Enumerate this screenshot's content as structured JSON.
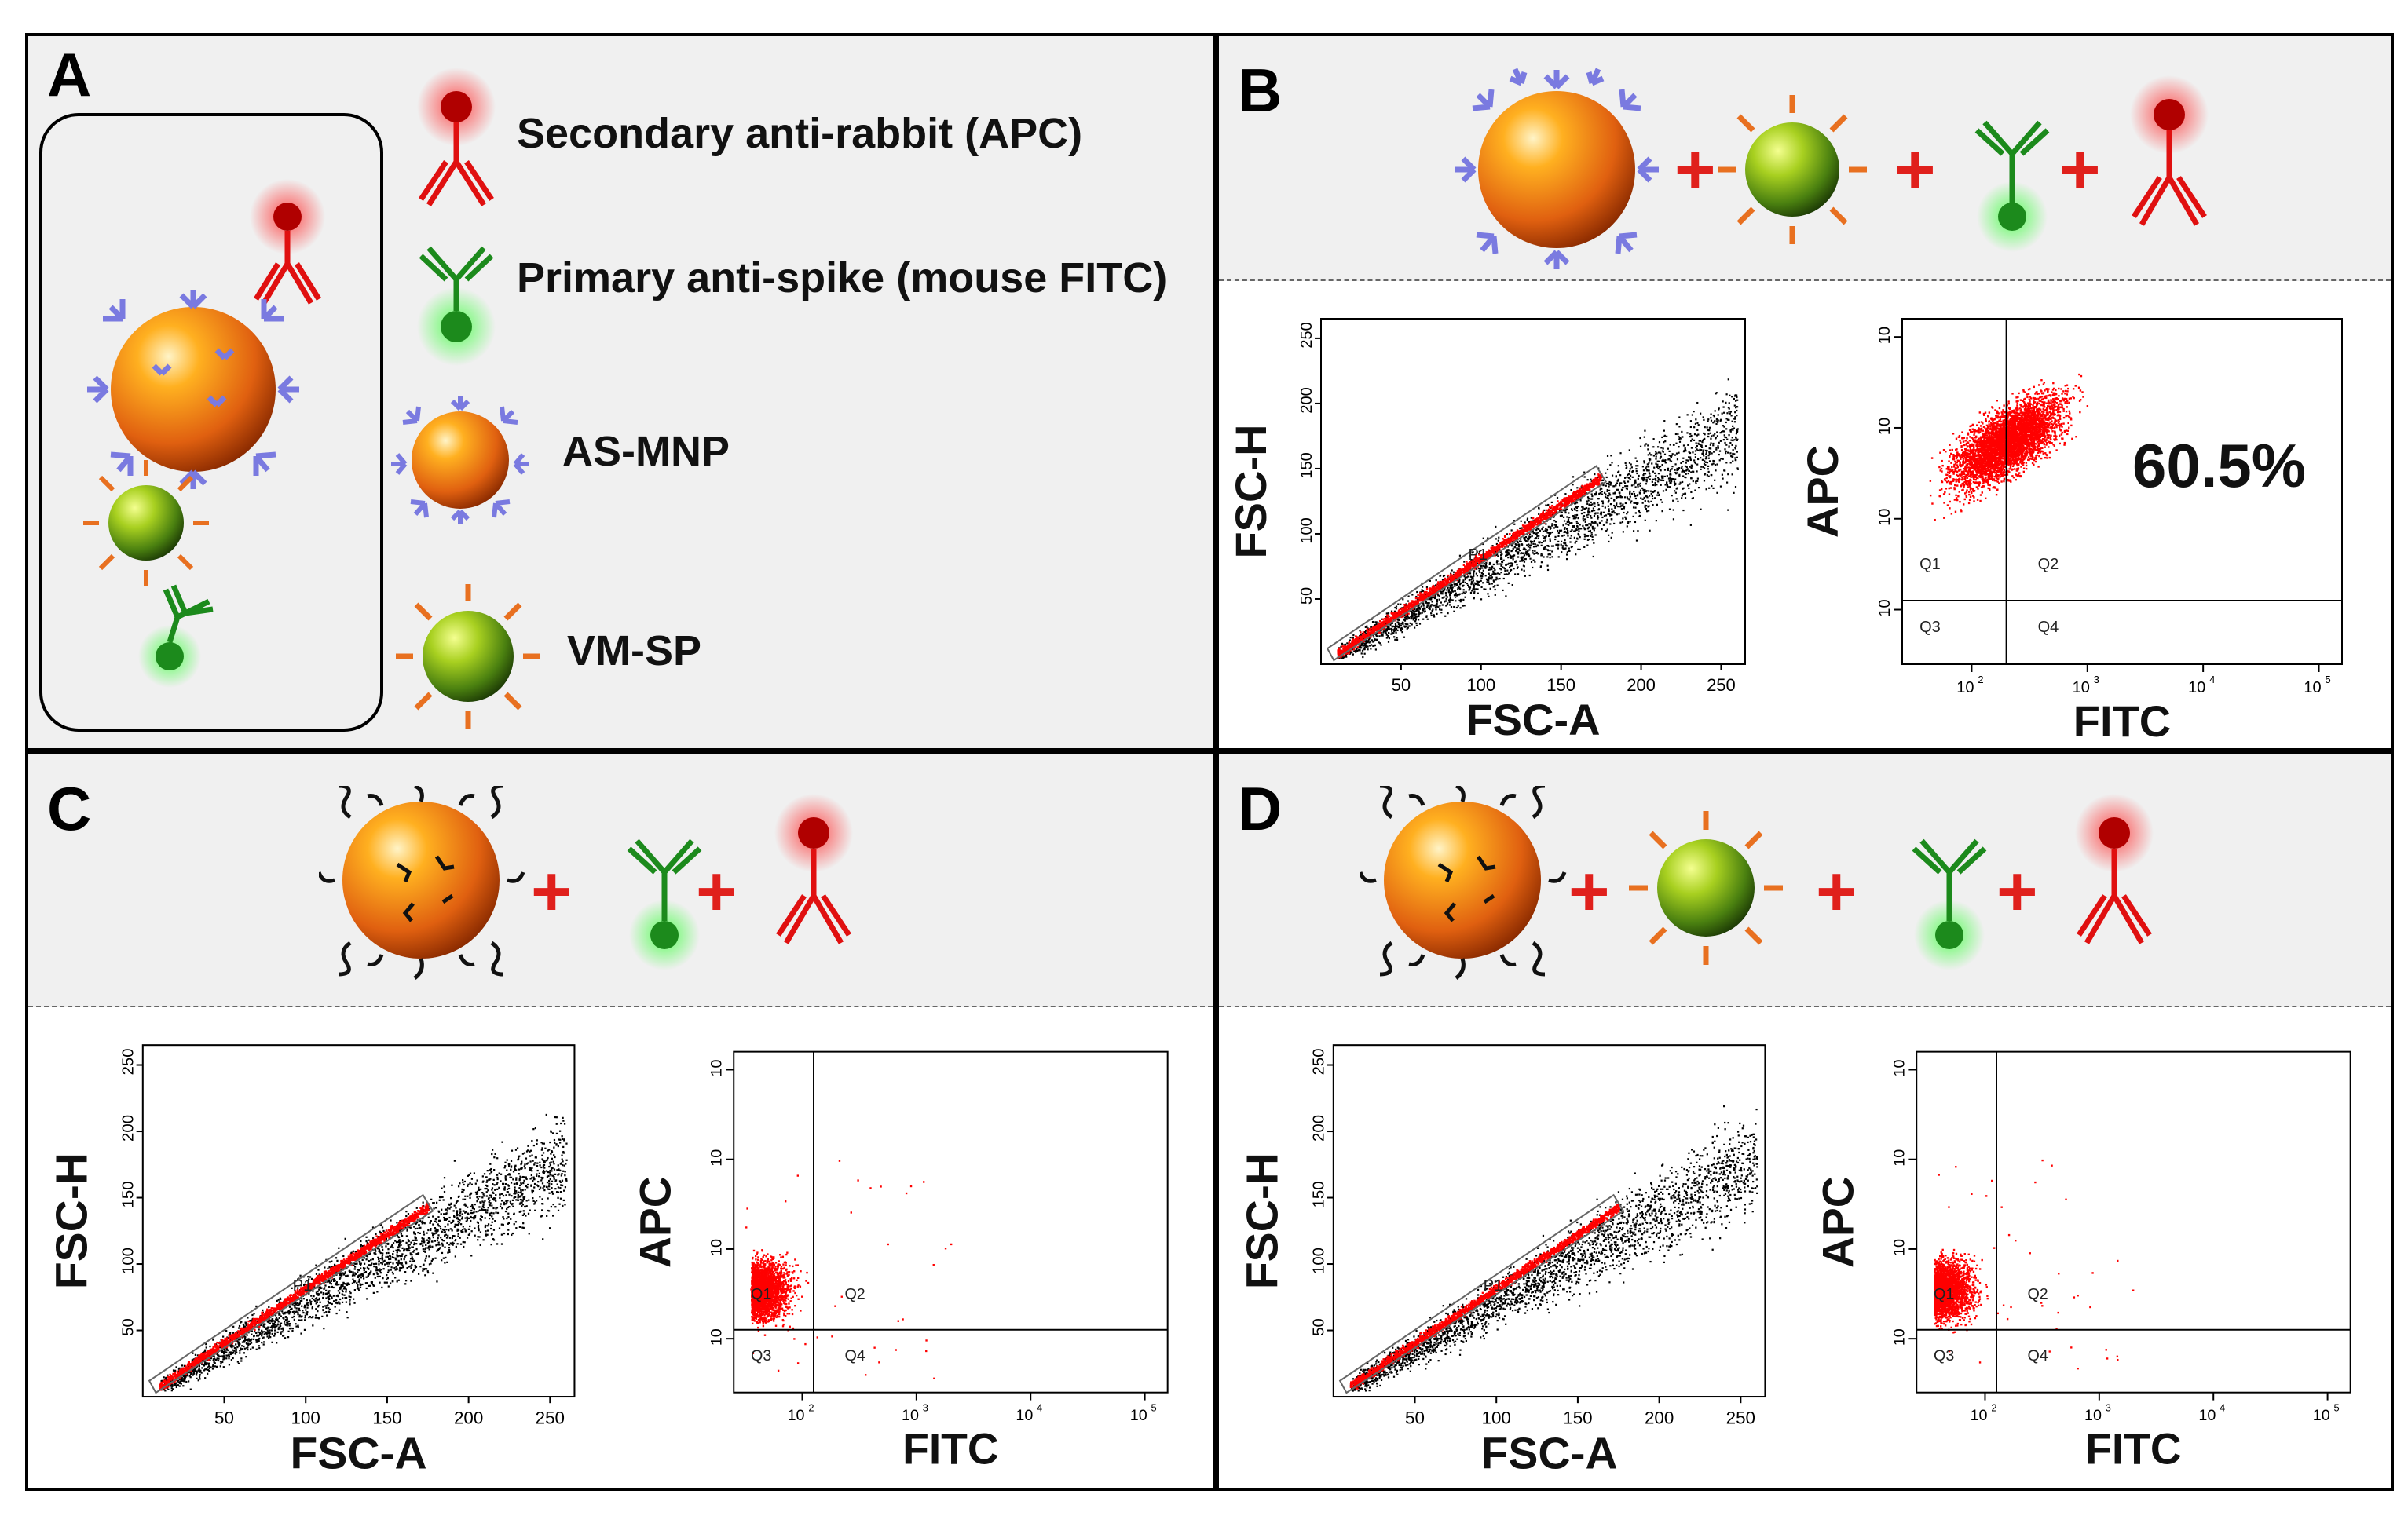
{
  "panels": {
    "A": {
      "letter": "A",
      "legend": [
        {
          "label": "Secondary anti-rabbit (APC)",
          "icon": "red-antibody-icon"
        },
        {
          "label": "Primary anti-spike (mouse FITC)",
          "icon": "green-antibody-icon"
        },
        {
          "label": "AS-MNP",
          "icon": "as-mnp-particle-icon"
        },
        {
          "label": "VM-SP",
          "icon": "vm-sp-particle-icon"
        }
      ]
    },
    "B": {
      "letter": "B",
      "fsc": {
        "xlabel": "FSC-A",
        "ylabel": "FSC-H",
        "gate": "P1"
      },
      "fl": {
        "xlabel": "FITC",
        "ylabel": "APC",
        "percent": "60.5%",
        "quadrants": [
          "Q1",
          "Q2",
          "Q3",
          "Q4"
        ]
      }
    },
    "C": {
      "letter": "C",
      "fsc": {
        "xlabel": "FSC-A",
        "ylabel": "FSC-H",
        "gate": "P1"
      },
      "fl": {
        "xlabel": "FITC",
        "ylabel": "APC",
        "quadrants": [
          "Q1",
          "Q2",
          "Q3",
          "Q4"
        ]
      }
    },
    "D": {
      "letter": "D",
      "fsc": {
        "xlabel": "FSC-A",
        "ylabel": "FSC-H",
        "gate": "P1"
      },
      "fl": {
        "xlabel": "FITC",
        "ylabel": "APC",
        "quadrants": [
          "Q1",
          "Q2",
          "Q3",
          "Q4"
        ]
      }
    }
  },
  "operator": "+",
  "axis_ticks": {
    "linear": [
      "50",
      "100",
      "150",
      "200",
      "250"
    ],
    "log_major": [
      "10",
      "10",
      "10",
      "10"
    ],
    "log_exp": [
      "2",
      "3",
      "4",
      "5"
    ]
  },
  "colors": {
    "events": "#ff0000",
    "scatter": "#000000",
    "plus": "#e0201c",
    "as_mnp_ab": "#8080e0",
    "green_ab": "#1c8a1c",
    "red_ab": "#e01010"
  }
}
